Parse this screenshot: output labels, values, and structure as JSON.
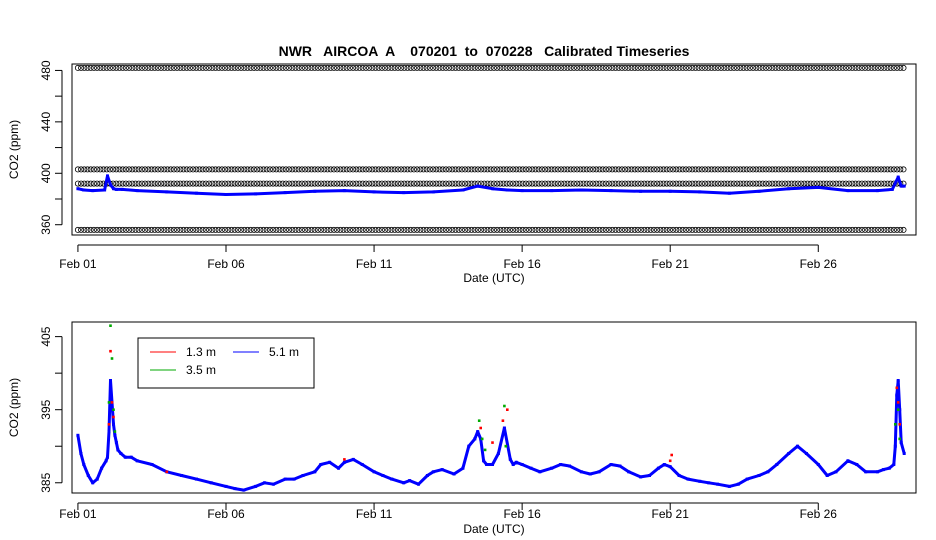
{
  "figure_title": "NWR   AIRCOA  A    070201  to  070228   Calibrated Timeseries",
  "chart_data": [
    {
      "type": "scatter",
      "title": "NWR   AIRCOA  A    070201  to  070228   Calibrated Timeseries",
      "xlabel": "Date (UTC)",
      "ylabel": "CO2 (ppm)",
      "x_ticks": [
        "Feb 01",
        "Feb 06",
        "Feb 11",
        "Feb 16",
        "Feb 21",
        "Feb 26"
      ],
      "x_tick_days": [
        0,
        5,
        10,
        15,
        20,
        25
      ],
      "xlim_days": [
        -0.2,
        28.3
      ],
      "ylim": [
        352,
        485
      ],
      "y_ticks": [
        360,
        400,
        440,
        480
      ],
      "y_tick_labels": [
        "360",
        "400",
        "440",
        "480"
      ],
      "legend": "none",
      "grid": false,
      "colors": {
        "calibration": "#000000",
        "ambient": "#0000ff"
      },
      "calibration_levels": [
        {
          "value": 482,
          "marker": "open-circle"
        },
        {
          "value": 403,
          "marker": "open-circle"
        },
        {
          "value": 392,
          "marker": "open-circle"
        },
        {
          "value": 356,
          "marker": "open-circle"
        }
      ],
      "calibration_x_range_days": [
        0.0,
        27.9
      ],
      "series": [
        {
          "color": "#0000ff",
          "x_days": [
            0.0,
            0.2,
            0.5,
            0.9,
            1.0,
            1.1,
            1.2,
            1.3,
            1.5,
            2.0,
            3.0,
            4.0,
            5.0,
            6.0,
            7.0,
            8.0,
            9.0,
            10.0,
            11.0,
            12.0,
            13.0,
            13.5,
            14.0,
            14.5,
            15.0,
            16.0,
            17.0,
            18.0,
            19.0,
            20.0,
            21.0,
            22.0,
            23.0,
            24.0,
            25.0,
            26.0,
            27.0,
            27.5,
            27.7,
            27.8,
            27.9
          ],
          "values": [
            388,
            387,
            386.5,
            387,
            398,
            391,
            388,
            387.5,
            387.5,
            386.5,
            385.5,
            384.5,
            383.5,
            384,
            385,
            386,
            386.5,
            385.5,
            385,
            385.5,
            387,
            390,
            388,
            387,
            386.5,
            386.5,
            387,
            386.5,
            386,
            386,
            385.5,
            384.5,
            386,
            388,
            389,
            386.5,
            386.5,
            387.5,
            397,
            390,
            390
          ]
        }
      ]
    },
    {
      "type": "scatter",
      "xlabel": "Date (UTC)",
      "ylabel": "CO2 (ppm)",
      "x_ticks": [
        "Feb 01",
        "Feb 06",
        "Feb 11",
        "Feb 16",
        "Feb 21",
        "Feb 26"
      ],
      "x_tick_days": [
        0,
        5,
        10,
        15,
        20,
        25
      ],
      "xlim_days": [
        -0.2,
        28.3
      ],
      "ylim": [
        383.6,
        407
      ],
      "y_ticks": [
        385,
        395,
        405
      ],
      "y_tick_labels": [
        "385",
        "395",
        "405"
      ],
      "legend_placement": "top-left",
      "legend": [
        {
          "label": "1.3 m",
          "color": "#ff0000"
        },
        {
          "label": "3.5 m",
          "color": "#00aa00"
        },
        {
          "label": "5.1 m",
          "color": "#0000ff"
        }
      ],
      "grid": false,
      "series": [
        {
          "name": "5.1 m",
          "color": "#0000ff",
          "x_days": [
            0.0,
            0.1,
            0.2,
            0.35,
            0.5,
            0.65,
            0.8,
            0.95,
            1.0,
            1.05,
            1.1,
            1.15,
            1.2,
            1.25,
            1.3,
            1.35,
            1.45,
            1.6,
            1.8,
            2.0,
            2.5,
            3.0,
            3.5,
            4.0,
            4.5,
            5.0,
            5.3,
            5.6,
            6.0,
            6.3,
            6.6,
            7.0,
            7.3,
            7.6,
            8.0,
            8.2,
            8.5,
            8.8,
            9.0,
            9.3,
            9.6,
            10.0,
            10.3,
            10.6,
            11.0,
            11.2,
            11.5,
            11.8,
            12.0,
            12.3,
            12.7,
            13.0,
            13.2,
            13.4,
            13.5,
            13.6,
            13.7,
            13.8,
            14.0,
            14.2,
            14.4,
            14.6,
            14.7,
            14.8,
            15.0,
            15.3,
            15.6,
            16.0,
            16.3,
            16.6,
            17.0,
            17.3,
            17.6,
            18.0,
            18.3,
            18.6,
            19.0,
            19.3,
            19.6,
            19.8,
            20.0,
            20.3,
            20.6,
            21.0,
            21.3,
            21.6,
            22.0,
            22.3,
            22.6,
            23.0,
            23.3,
            23.6,
            24.0,
            24.3,
            24.6,
            25.0,
            25.3,
            25.6,
            26.0,
            26.3,
            26.6,
            27.0,
            27.2,
            27.4,
            27.55,
            27.6,
            27.65,
            27.7,
            27.75,
            27.8,
            27.9
          ],
          "values": [
            391.5,
            389,
            387.5,
            386,
            385,
            385.5,
            387,
            388,
            388.5,
            392,
            399,
            396,
            393,
            391.5,
            390.5,
            389.5,
            389,
            388.5,
            388.5,
            388,
            387.5,
            386.5,
            386,
            385.5,
            385,
            384.5,
            384.2,
            384,
            384.5,
            385,
            384.8,
            385.5,
            385.5,
            386,
            386.5,
            387.5,
            387.8,
            387,
            387.8,
            388.2,
            387.5,
            386.5,
            386,
            385.5,
            385,
            385.3,
            384.8,
            386,
            386.5,
            386.8,
            386.2,
            387,
            390,
            391,
            392,
            391,
            388,
            387.5,
            387.5,
            389,
            392.5,
            388.2,
            387.5,
            387.8,
            387.5,
            387,
            386.5,
            387,
            387.5,
            387.3,
            386.5,
            386.2,
            386.5,
            387.5,
            387.3,
            386.5,
            385.8,
            386,
            387,
            387.5,
            387.2,
            386,
            385.5,
            385.2,
            385,
            384.8,
            384.5,
            384.8,
            385.5,
            386,
            386.5,
            387.5,
            389,
            390,
            389,
            387.5,
            386,
            386.5,
            388,
            387.5,
            386.5,
            386.5,
            386.8,
            387,
            387.5,
            390,
            397,
            399,
            395,
            390.5,
            389
          ]
        },
        {
          "name": "1.3 m",
          "color": "#ff0000",
          "x_days": [
            1.05,
            1.1,
            1.15,
            1.2,
            3.0,
            9.0,
            13.6,
            14.0,
            14.35,
            14.45,
            14.5,
            20.0,
            20.05,
            27.65,
            27.7,
            27.75
          ],
          "values": [
            393,
            403,
            396,
            394,
            386.5,
            388.2,
            392.5,
            390.5,
            393.5,
            390,
            395,
            388,
            388.8,
            398,
            396,
            393
          ]
        },
        {
          "name": "3.5 m",
          "color": "#00aa00",
          "x_days": [
            1.05,
            1.1,
            1.15,
            1.2,
            1.25,
            13.55,
            13.65,
            13.75,
            14.4,
            14.45,
            27.6,
            27.7,
            27.75
          ],
          "values": [
            396,
            406.5,
            402,
            395,
            392,
            393.5,
            391,
            389.5,
            395.5,
            390,
            393,
            395,
            391
          ]
        }
      ]
    }
  ]
}
